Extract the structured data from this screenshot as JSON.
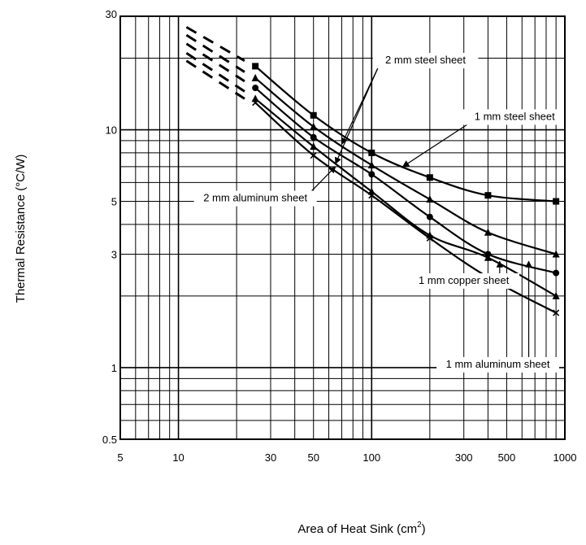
{
  "chart_data": {
    "type": "line",
    "title": "",
    "xlabel": "Area of Heat Sink (cm",
    "xlabel_sup": "2",
    "xlabel_close": ")",
    "ylabel": "Thermal Resistance (°C/W)",
    "xscale": "log",
    "yscale": "log",
    "xlim": [
      5,
      1000
    ],
    "ylim": [
      0.5,
      30
    ],
    "grid": true,
    "x_ticks": [
      5,
      10,
      30,
      50,
      100,
      300,
      500,
      1000
    ],
    "x_tick_labels": [
      "5",
      "10",
      "30",
      "50",
      "100",
      "300",
      "500",
      "1000"
    ],
    "y_ticks": [
      0.5,
      1,
      3,
      5,
      10,
      30
    ],
    "y_tick_labels": [
      "0.5",
      "1",
      "3",
      "5",
      "10",
      "30"
    ],
    "colors": {
      "line": "#000000",
      "grid": "#000000",
      "background": "#ffffff"
    },
    "series": [
      {
        "name": "1 mm steel sheet",
        "marker": "square",
        "x": [
          25,
          50,
          100,
          200,
          400,
          900
        ],
        "y": [
          18.5,
          11.5,
          8.0,
          6.3,
          5.3,
          5.0
        ],
        "extrapolated": {
          "x": [
            11,
            22
          ],
          "y": [
            27,
            19.5
          ]
        }
      },
      {
        "name": "2 mm steel sheet",
        "marker": "triangle",
        "x": [
          25,
          50,
          100,
          200,
          400,
          900
        ],
        "y": [
          16.5,
          10.3,
          7.1,
          5.1,
          3.7,
          3.0
        ],
        "extrapolated": {
          "x": [
            11,
            22
          ],
          "y": [
            25,
            17.5
          ]
        }
      },
      {
        "name": "2 mm aluminum sheet",
        "marker": "circle",
        "x": [
          25,
          50,
          100,
          200,
          400,
          900
        ],
        "y": [
          15.0,
          9.3,
          6.5,
          4.3,
          3.0,
          2.5
        ],
        "extrapolated": {
          "x": [
            11,
            22
          ],
          "y": [
            23,
            16
          ]
        }
      },
      {
        "name": "1 mm copper sheet",
        "marker": "triangle",
        "x": [
          25,
          50,
          100,
          200,
          400,
          900
        ],
        "y": [
          13.5,
          8.5,
          5.5,
          3.6,
          2.9,
          2.0
        ],
        "extrapolated": {
          "x": [
            11,
            22
          ],
          "y": [
            21,
            14.5
          ]
        }
      },
      {
        "name": "1 mm aluminum sheet",
        "marker": "cross",
        "x": [
          25,
          50,
          100,
          200,
          400,
          900
        ],
        "y": [
          13.0,
          7.8,
          5.3,
          3.5,
          2.4,
          1.7
        ],
        "extrapolated": {
          "x": [
            11,
            22
          ],
          "y": [
            19.5,
            13.5
          ]
        }
      }
    ],
    "annotations": [
      {
        "id": "ann-2mm-steel",
        "text": "2 mm steel sheet",
        "label_at": [
          190,
          19
        ],
        "points_to": [
          [
            70,
            8.7
          ],
          [
            65,
            7.2
          ]
        ]
      },
      {
        "id": "ann-1mm-steel",
        "text": "1 mm steel sheet",
        "label_at": [
          550,
          11
        ],
        "points_to": [
          [
            145,
            7.0
          ]
        ]
      },
      {
        "id": "ann-2mm-aluminum",
        "text": "2 mm aluminum sheet",
        "label_at": [
          25,
          5.0
        ],
        "points_to": [
          [
            65,
            7.0
          ]
        ]
      },
      {
        "id": "ann-1mm-copper",
        "text": "1 mm copper sheet",
        "label_at": [
          300,
          2.25
        ],
        "points_to": [
          [
            460,
            2.8
          ]
        ]
      },
      {
        "id": "ann-1mm-aluminum",
        "text": "1 mm aluminum sheet",
        "label_at": [
          450,
          1.0
        ],
        "points_to": [
          [
            650,
            2.8
          ]
        ]
      }
    ]
  }
}
